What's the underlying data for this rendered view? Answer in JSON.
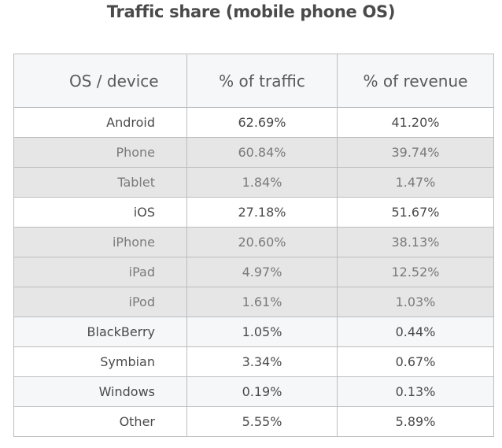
{
  "chart_data": {
    "type": "table",
    "title": "Traffic share (mobile phone OS)",
    "columns": [
      "OS / device",
      "% of traffic",
      "% of revenue"
    ],
    "rows": [
      {
        "label": "Android",
        "traffic": "62.69%",
        "revenue": "41.20%",
        "kind": "main"
      },
      {
        "label": "Phone",
        "traffic": "60.84%",
        "revenue": "39.74%",
        "kind": "sub"
      },
      {
        "label": "Tablet",
        "traffic": "1.84%",
        "revenue": "1.47%",
        "kind": "sub"
      },
      {
        "label": "iOS",
        "traffic": "27.18%",
        "revenue": "51.67%",
        "kind": "main"
      },
      {
        "label": "iPhone",
        "traffic": "20.60%",
        "revenue": "38.13%",
        "kind": "sub"
      },
      {
        "label": "iPad",
        "traffic": "4.97%",
        "revenue": "12.52%",
        "kind": "sub"
      },
      {
        "label": "iPod",
        "traffic": "1.61%",
        "revenue": "1.03%",
        "kind": "sub"
      },
      {
        "label": "BlackBerry",
        "traffic": "1.05%",
        "revenue": "0.44%",
        "kind": "other-alt"
      },
      {
        "label": "Symbian",
        "traffic": "3.34%",
        "revenue": "0.67%",
        "kind": "other"
      },
      {
        "label": "Windows",
        "traffic": "0.19%",
        "revenue": "0.13%",
        "kind": "other-alt"
      },
      {
        "label": "Other",
        "traffic": "5.55%",
        "revenue": "5.89%",
        "kind": "other"
      }
    ]
  },
  "colors": {
    "header_bg": "#f6f7f9",
    "sub_row_bg": "#e6e6e6",
    "alt_row_bg": "#f6f7f9",
    "border": "#bdbdbd",
    "text_main": "#4a4a4a",
    "text_sub": "#7a7a7a"
  }
}
